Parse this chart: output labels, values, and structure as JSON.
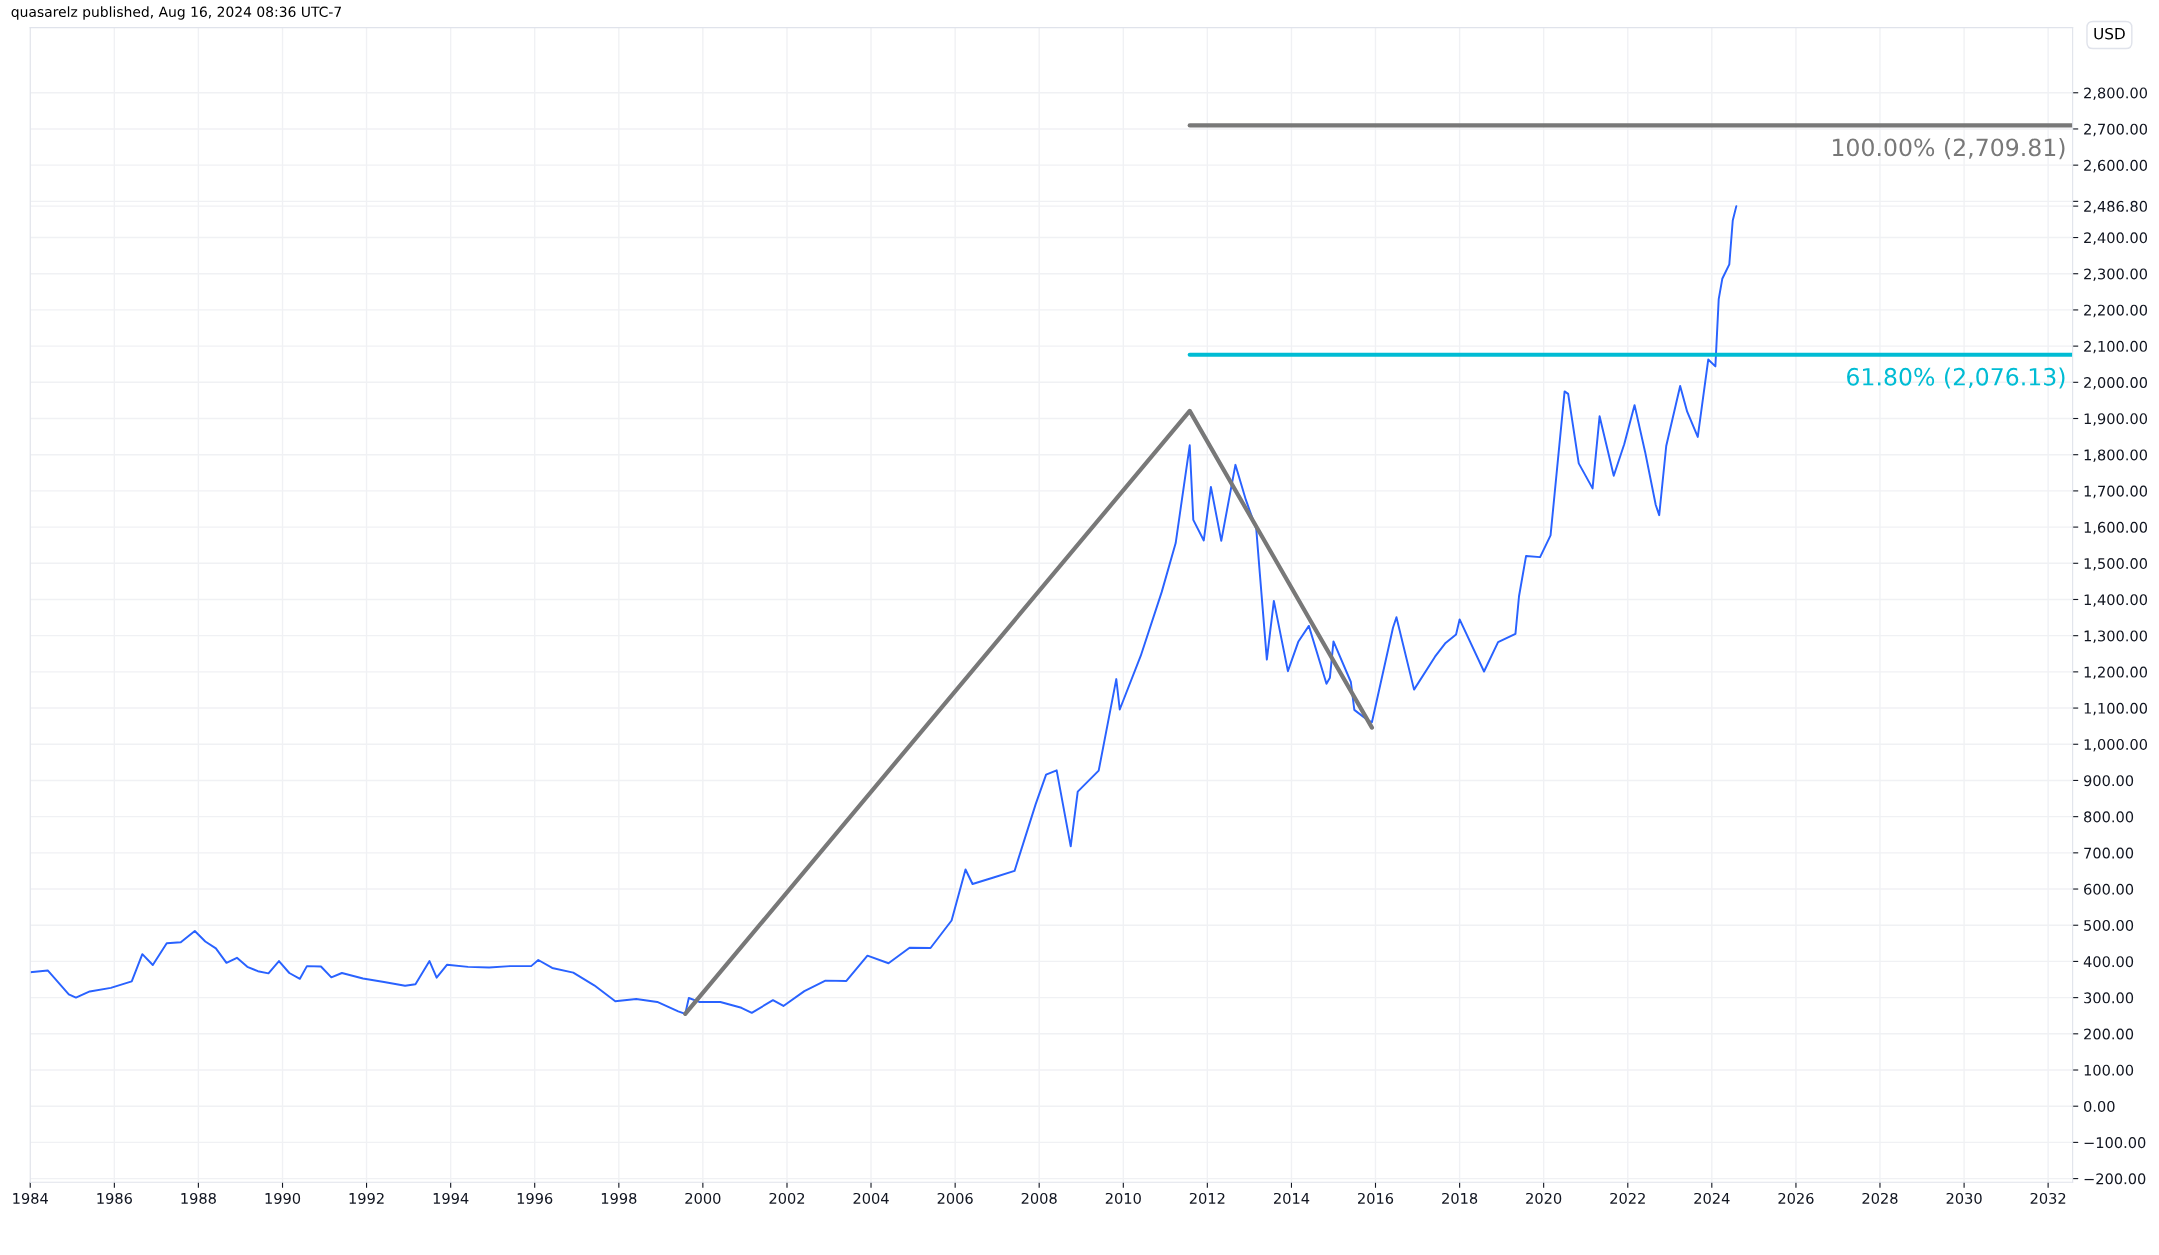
{
  "chart_data": {
    "type": "line",
    "ylabel": "USD",
    "xlim": [
      "1984-01",
      "2032-08"
    ],
    "xticks": [
      "1984",
      "1986",
      "1988",
      "1990",
      "1992",
      "1994",
      "1996",
      "1998",
      "2000",
      "2002",
      "2004",
      "2006",
      "2008",
      "2010",
      "2012",
      "2014",
      "2016",
      "2018",
      "2020",
      "2022",
      "2024",
      "2026",
      "2028",
      "2030",
      "2032"
    ],
    "ylim": [
      -210,
      2980
    ],
    "yticks": [
      {
        "value": -200,
        "label": "−200.00"
      },
      {
        "value": -100,
        "label": "−100.00"
      },
      {
        "value": 0,
        "label": "0.00"
      },
      {
        "value": 100,
        "label": "100.00"
      },
      {
        "value": 200,
        "label": "200.00"
      },
      {
        "value": 300,
        "label": "300.00"
      },
      {
        "value": 400,
        "label": "400.00"
      },
      {
        "value": 500,
        "label": "500.00"
      },
      {
        "value": 600,
        "label": "600.00"
      },
      {
        "value": 700,
        "label": "700.00"
      },
      {
        "value": 800,
        "label": "800.00"
      },
      {
        "value": 900,
        "label": "900.00"
      },
      {
        "value": 1000,
        "label": "1,000.00"
      },
      {
        "value": 1100,
        "label": "1,100.00"
      },
      {
        "value": 1200,
        "label": "1,200.00"
      },
      {
        "value": 1300,
        "label": "1,300.00"
      },
      {
        "value": 1400,
        "label": "1,400.00"
      },
      {
        "value": 1500,
        "label": "1,500.00"
      },
      {
        "value": 1600,
        "label": "1,600.00"
      },
      {
        "value": 1700,
        "label": "1,700.00"
      },
      {
        "value": 1800,
        "label": "1,800.00"
      },
      {
        "value": 1900,
        "label": "1,900.00"
      },
      {
        "value": 2000,
        "label": "2,000.00"
      },
      {
        "value": 2100,
        "label": "2,100.00"
      },
      {
        "value": 2200,
        "label": "2,200.00"
      },
      {
        "value": 2300,
        "label": "2,300.00"
      },
      {
        "value": 2400,
        "label": "2,400.00"
      },
      {
        "value": 2486.8,
        "label": "2,486.80"
      },
      {
        "value": 2500,
        "label": null
      },
      {
        "value": 2600,
        "label": "2,600.00"
      },
      {
        "value": 2700,
        "label": "2,700.00"
      },
      {
        "value": 2800,
        "label": "2,800.00"
      }
    ],
    "grid": true,
    "annotations": [
      "quasarelz published, Aug 16, 2024 08:36 UTC-7"
    ],
    "series": [
      {
        "color": "#2962ff",
        "x": [
          "1984-01",
          "1984-06",
          "1984-12",
          "1985-02",
          "1985-06",
          "1985-12",
          "1986-06",
          "1986-09",
          "1986-12",
          "1987-04",
          "1987-08",
          "1987-12",
          "1988-03",
          "1988-06",
          "1988-09",
          "1988-12",
          "1989-03",
          "1989-06",
          "1989-09",
          "1989-12",
          "1990-03",
          "1990-06",
          "1990-08",
          "1990-12",
          "1991-03",
          "1991-06",
          "1991-12",
          "1992-06",
          "1992-12",
          "1993-03",
          "1993-07",
          "1993-09",
          "1993-12",
          "1994-06",
          "1994-12",
          "1995-06",
          "1995-12",
          "1996-02",
          "1996-06",
          "1996-12",
          "1997-06",
          "1997-12",
          "1998-06",
          "1998-12",
          "1999-06",
          "1999-08",
          "1999-09",
          "1999-12",
          "2000-06",
          "2000-12",
          "2001-03",
          "2001-09",
          "2001-12",
          "2002-06",
          "2002-12",
          "2003-06",
          "2003-12",
          "2004-06",
          "2004-12",
          "2005-06",
          "2005-12",
          "2006-04",
          "2006-06",
          "2006-12",
          "2007-06",
          "2007-12",
          "2008-03",
          "2008-06",
          "2008-10",
          "2008-12",
          "2009-06",
          "2009-11",
          "2009-12",
          "2010-06",
          "2010-12",
          "2011-04",
          "2011-08",
          "2011-09",
          "2011-12",
          "2012-02",
          "2012-05",
          "2012-09",
          "2012-12",
          "2013-03",
          "2013-04",
          "2013-06",
          "2013-08",
          "2013-12",
          "2014-03",
          "2014-06",
          "2014-11",
          "2014-12",
          "2015-01",
          "2015-06",
          "2015-07",
          "2015-11",
          "2015-12",
          "2016-06",
          "2016-07",
          "2016-12",
          "2017-06",
          "2017-09",
          "2017-12",
          "2018-01",
          "2018-08",
          "2018-12",
          "2019-05",
          "2019-06",
          "2019-08",
          "2019-12",
          "2020-03",
          "2020-07",
          "2020-08",
          "2020-11",
          "2021-03",
          "2021-05",
          "2021-09",
          "2021-12",
          "2022-03",
          "2022-06",
          "2022-09",
          "2022-10",
          "2022-12",
          "2023-04",
          "2023-06",
          "2023-09",
          "2023-12",
          "2024-02",
          "2024-03",
          "2024-04",
          "2024-06",
          "2024-07",
          "2024-08"
        ],
        "values": [
          370,
          375,
          309,
          300,
          317,
          327,
          345,
          420,
          390,
          450,
          453,
          484,
          455,
          436,
          396,
          410,
          385,
          373,
          367,
          401,
          368,
          352,
          387,
          386,
          356,
          368,
          353,
          343,
          333,
          337,
          401,
          355,
          391,
          385,
          383,
          387,
          387,
          404,
          382,
          369,
          334,
          290,
          296,
          288,
          262,
          255,
          299,
          288,
          288,
          272,
          258,
          293,
          277,
          318,
          347,
          346,
          416,
          395,
          438,
          437,
          513,
          654,
          614,
          632,
          650,
          834,
          916,
          928,
          718,
          869,
          927,
          1180,
          1096,
          1244,
          1421,
          1556,
          1826,
          1620,
          1563,
          1711,
          1562,
          1772,
          1675,
          1595,
          1472,
          1234,
          1396,
          1202,
          1283,
          1327,
          1167,
          1184,
          1284,
          1172,
          1095,
          1065,
          1061,
          1322,
          1351,
          1151,
          1242,
          1280,
          1303,
          1345,
          1201,
          1282,
          1305,
          1409,
          1520,
          1517,
          1577,
          1975,
          1968,
          1776,
          1707,
          1906,
          1742,
          1829,
          1937,
          1807,
          1661,
          1633,
          1824,
          1990,
          1919,
          1849,
          2063,
          2044,
          2230,
          2286,
          2326,
          2447,
          2486.8
        ]
      },
      {
        "color": "#787878",
        "x": [
          "1999-08",
          "2011-08",
          "2015-12"
        ],
        "values": [
          255,
          1921,
          1046
        ]
      },
      {
        "name": "100.00% (2,709.81)",
        "color": "#787878",
        "x": [
          "2011-08",
          "2032-08"
        ],
        "values": [
          2709.81,
          2709.81
        ]
      },
      {
        "name": "61.80% (2,076.13)",
        "color": "#00bcd4",
        "x": [
          "2011-08",
          "2032-08"
        ],
        "values": [
          2076.13,
          2076.13
        ]
      }
    ]
  }
}
